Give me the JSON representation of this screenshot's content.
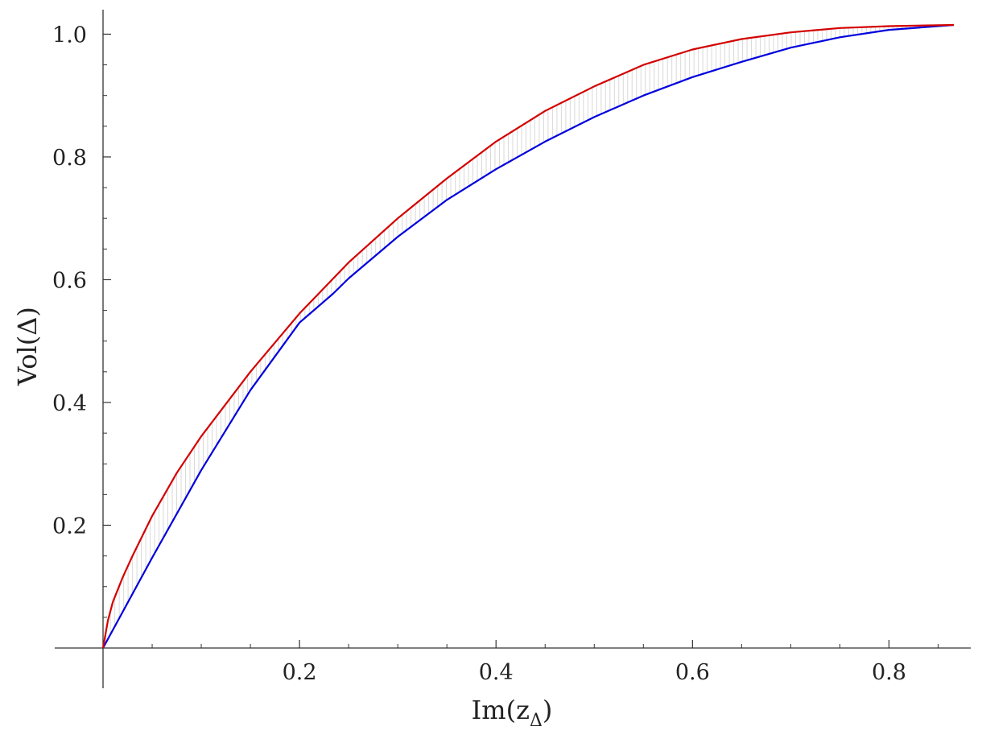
{
  "chart_data": {
    "type": "area",
    "xlabel": "Im(z",
    "xlabel_sub": "Δ",
    "xlabel_end": ")",
    "ylabel": "Vol(Δ)",
    "xlim": [
      0,
      0.866
    ],
    "ylim": [
      0,
      1.015
    ],
    "x_ticks": [
      {
        "value": 0.2,
        "label": "0.2"
      },
      {
        "value": 0.4,
        "label": "0.4"
      },
      {
        "value": 0.6,
        "label": "0.6"
      },
      {
        "value": 0.8,
        "label": "0.8"
      }
    ],
    "y_ticks": [
      {
        "value": 0.2,
        "label": "0.2"
      },
      {
        "value": 0.4,
        "label": "0.4"
      },
      {
        "value": 0.6,
        "label": "0.6"
      },
      {
        "value": 0.8,
        "label": "0.8"
      },
      {
        "value": 1.0,
        "label": "1.0"
      }
    ],
    "grid": false,
    "legend": "none",
    "fill_color": "#d9d9d9",
    "series": [
      {
        "color": "#d40000",
        "x": [
          0,
          0.005,
          0.01,
          0.02,
          0.03,
          0.05,
          0.075,
          0.1,
          0.15,
          0.2,
          0.25,
          0.3,
          0.35,
          0.4,
          0.45,
          0.5,
          0.55,
          0.6,
          0.65,
          0.7,
          0.75,
          0.8,
          0.866
        ],
        "y": [
          0,
          0.045,
          0.075,
          0.115,
          0.15,
          0.215,
          0.285,
          0.345,
          0.45,
          0.545,
          0.628,
          0.7,
          0.765,
          0.825,
          0.875,
          0.915,
          0.95,
          0.975,
          0.992,
          1.003,
          1.01,
          1.013,
          1.015
        ]
      },
      {
        "color": "#0000dd",
        "x": [
          0,
          0.05,
          0.1,
          0.15,
          0.2,
          0.234,
          0.25,
          0.3,
          0.35,
          0.4,
          0.45,
          0.5,
          0.55,
          0.6,
          0.65,
          0.7,
          0.75,
          0.8,
          0.866
        ],
        "y": [
          0,
          0.147,
          0.29,
          0.42,
          0.53,
          0.577,
          0.602,
          0.67,
          0.73,
          0.78,
          0.825,
          0.865,
          0.9,
          0.93,
          0.955,
          0.978,
          0.995,
          1.007,
          1.015
        ]
      }
    ]
  }
}
